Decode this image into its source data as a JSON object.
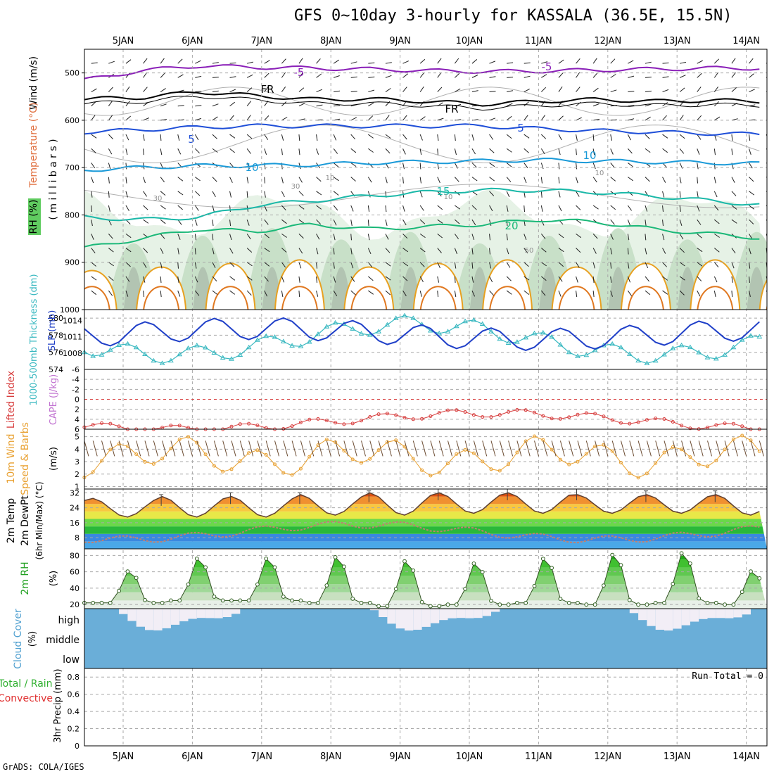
{
  "title": "GFS 0~10day 3-hourly for KASSALA (36.5E, 15.5N)",
  "credit": "GrADS: COLA/IGES",
  "colors": {
    "grid": "#a8a8a8",
    "frame": "#000000",
    "temp_purple": "#8a1fb8",
    "temp_blue": "#1f4fd8",
    "temp_cyan": "#1a9ad8",
    "temp_teal": "#1ab8a8",
    "temp_green": "#1ab878",
    "temp_orange": "#e8a020",
    "rh_light": "#e6f2e6",
    "rh_mid": "#c8e0c8",
    "rh_dark": "#a8b8a8",
    "rh_green": "#60cc60",
    "slp": "#1f3fc8",
    "thickness": "#38b8c0",
    "lifted": "#d84040",
    "wind_speed": "#e8a030",
    "barb": "#6a4a30",
    "cloud": "#6aaed8",
    "cloud_clear": "#f2eef6"
  },
  "chart_data": [
    {
      "id": "pressure_panel",
      "type": "contour",
      "x_ticks": [
        "5JAN",
        "6JAN",
        "7JAN",
        "8JAN",
        "9JAN",
        "10JAN",
        "11JAN",
        "12JAN",
        "13JAN",
        "14JAN"
      ],
      "ylabel_wind": "Wind (m/s)",
      "ylabel_temp": "Temperature (°C)",
      "ylabel_rh": "RH (%)",
      "ylabel_units": "( m i l l i b a r s )",
      "y_ticks": [
        500,
        600,
        700,
        800,
        900,
        1000
      ],
      "ylim": [
        450,
        1000
      ],
      "isotherm_labels": [
        {
          "label": "-5",
          "level": -5
        },
        {
          "label": "FR",
          "level": 0
        },
        {
          "label": "5",
          "level": 5
        },
        {
          "label": "10",
          "level": 10
        },
        {
          "label": "15",
          "level": 15
        },
        {
          "label": "20",
          "level": 20
        }
      ],
      "isotherm_pressure_mb": [
        {
          "level": -5,
          "p": [
            515,
            495,
            485,
            488,
            490,
            492,
            495,
            497,
            496,
            494,
            492,
            490,
            490
          ]
        },
        {
          "level": 0,
          "p": [
            555,
            552,
            540,
            548,
            556,
            555,
            560,
            566,
            560,
            556,
            560,
            558,
            560
          ]
        },
        {
          "level": 5,
          "p": [
            625,
            620,
            615,
            612,
            612,
            612,
            612,
            612,
            618,
            622,
            625,
            628,
            630
          ]
        },
        {
          "level": 10,
          "p": [
            705,
            700,
            696,
            696,
            694,
            690,
            688,
            686,
            684,
            686,
            688,
            690,
            692
          ]
        },
        {
          "level": 15,
          "p": [
            805,
            810,
            805,
            780,
            770,
            760,
            752,
            748,
            748,
            752,
            760,
            770,
            780
          ]
        },
        {
          "level": 20,
          "p": [
            870,
            850,
            830,
            835,
            820,
            830,
            825,
            820,
            810,
            815,
            830,
            840,
            850
          ]
        }
      ],
      "rh_labels": [
        "30",
        "30",
        "10",
        "10",
        "50",
        "10"
      ]
    },
    {
      "id": "slp_thickness",
      "type": "line",
      "ylabel_left": "1000-500mb Thickness (dm)",
      "ylabel_right": "SLP (mb)",
      "y_left_ticks": [
        574,
        576,
        578,
        580
      ],
      "y_right_ticks": [
        1008,
        1011,
        1014
      ],
      "y_left_lim": [
        574,
        581
      ],
      "y_right_lim": [
        1005,
        1016
      ]
    },
    {
      "id": "lifted_cape",
      "type": "line",
      "ylabel_lifted": "Lifted Index",
      "ylabel_cape": "CAPE (J/kg)",
      "y_ticks": [
        -6,
        -4,
        -2,
        0,
        2,
        4,
        6
      ],
      "y_tick_labels": [
        "-6",
        "-4",
        "-2",
        "0",
        "2",
        "4",
        "6"
      ],
      "ylim": [
        -6,
        6
      ]
    },
    {
      "id": "wind10m",
      "type": "line",
      "ylabel": "10m Wind Speed & Barbs (m/s)",
      "ylabel_l1": "10m Wind",
      "ylabel_l2": "Speed & Barbs",
      "ylabel_units": "(m/s)",
      "y_ticks": [
        1,
        2,
        3,
        4,
        5
      ],
      "ylim": [
        0.8,
        5.6
      ]
    },
    {
      "id": "temp2m",
      "type": "area",
      "ylabel_l1": "2m Temp",
      "ylabel_l2": "2m DewPt",
      "ylabel_l3": "(6hr Min/Max) (°C)",
      "y_ticks": [
        8,
        16,
        24,
        32
      ],
      "ylim": [
        2,
        34
      ],
      "daily_max": [
        29,
        30,
        30,
        31,
        32,
        32,
        32,
        31,
        31,
        31
      ],
      "daily_min": [
        19,
        19,
        19,
        20,
        20,
        21,
        21,
        21,
        21,
        20
      ]
    },
    {
      "id": "rh2m",
      "type": "area",
      "ylabel": "2m RH",
      "ylabel_units": "(%)",
      "y_ticks": [
        20,
        40,
        60,
        80
      ],
      "ylim": [
        15,
        88
      ],
      "daily_max": [
        62,
        78,
        78,
        80,
        75,
        72,
        78,
        83,
        85,
        62
      ],
      "daily_min": [
        22,
        25,
        25,
        22,
        18,
        20,
        22,
        20,
        22,
        20
      ]
    },
    {
      "id": "cloud",
      "type": "area",
      "ylabel": "Cloud Cover (%)",
      "ylabel_l1": "Cloud Cover",
      "ylabel_units": "(%)",
      "levels": [
        "high",
        "middle",
        "low"
      ]
    },
    {
      "id": "precip",
      "type": "bar",
      "ylabel_l1": "Total / Rain",
      "ylabel_l2": "Convective",
      "ylabel_l3": "3hr Precip (mm)",
      "y_ticks": [
        0,
        0.2,
        0.4,
        0.6,
        0.8
      ],
      "y_tick_labels": [
        "0",
        "0.2",
        "0.4",
        "0.6",
        "0.8"
      ],
      "ylim": [
        0,
        0.9
      ],
      "run_total": "Run Total = 0"
    }
  ]
}
